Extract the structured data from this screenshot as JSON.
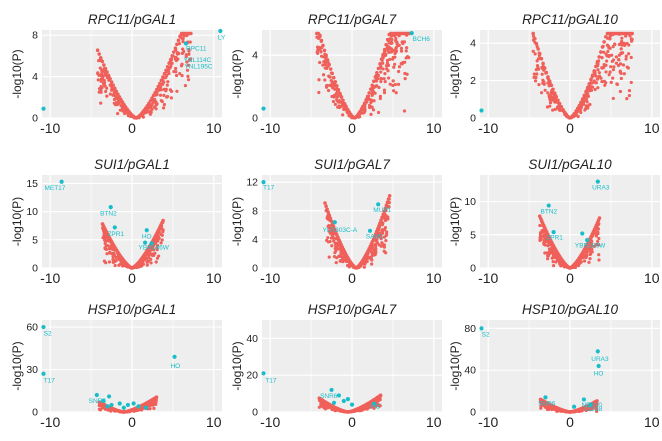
{
  "colors": {
    "background": "#eeeeee",
    "gridline": "#ffffff",
    "significant": "#17bec9",
    "nonsignificant": "#f0605a"
  },
  "chart_data": [
    {
      "type": "scatter",
      "title": "RPC11/pGAL1",
      "ylabel": "-log10(P)",
      "xlim": [
        -11,
        11
      ],
      "ylim": [
        0,
        8.5
      ],
      "xticks": [
        -10,
        0,
        10
      ],
      "yticks": [
        0,
        4,
        8
      ],
      "xtick_labels": [
        "-10",
        "0",
        "10"
      ],
      "ytick_labels": [
        "0",
        "4",
        "8"
      ],
      "grid": true,
      "background": "#eeeeee",
      "volcano": {
        "center": 0.5,
        "k": 0.75,
        "xmin": -4.2,
        "xmax": 7.2
      },
      "points": [
        {
          "x": 6.6,
          "y": 7.2
        },
        {
          "x": 10.8,
          "y": 8.4
        },
        {
          "x": -11,
          "y": 0.9
        }
      ],
      "labels": [
        {
          "text": "RPC11",
          "x": 6.6,
          "y": 6.5
        },
        {
          "text": "YNL114C",
          "x": 6.3,
          "y": 5.4
        },
        {
          "text": "YNL195C",
          "x": 6.4,
          "y": 4.8
        },
        {
          "text": "LY",
          "x": 10.5,
          "y": 7.6
        }
      ]
    },
    {
      "type": "scatter",
      "title": "RPC11/pGAL7",
      "ylabel": "-log10(P)",
      "xlim": [
        -11,
        11
      ],
      "ylim": [
        0,
        5.6
      ],
      "xticks": [
        -10,
        0,
        10
      ],
      "yticks": [
        0,
        4
      ],
      "xtick_labels": [
        "-10",
        "0",
        "10"
      ],
      "ytick_labels": [
        "0",
        "4"
      ],
      "grid": true,
      "background": "#eeeeee",
      "volcano": {
        "center": 0.3,
        "k": 0.7,
        "xmin": -4.3,
        "xmax": 7.0
      },
      "points": [
        {
          "x": 7.3,
          "y": 5.4
        },
        {
          "x": -11,
          "y": 0.6
        }
      ],
      "labels": [
        {
          "text": "BCH6",
          "x": 7.4,
          "y": 4.9
        }
      ]
    },
    {
      "type": "scatter",
      "title": "RPC11/pGAL10",
      "ylabel": "-log10(P)",
      "xlim": [
        -11,
        11
      ],
      "ylim": [
        0,
        4.7
      ],
      "xticks": [
        -10,
        0,
        10
      ],
      "yticks": [
        0,
        2,
        4
      ],
      "xtick_labels": [
        "-10",
        "0",
        "10"
      ],
      "ytick_labels": [
        "0",
        "2",
        "4"
      ],
      "grid": true,
      "background": "#eeeeee",
      "volcano": {
        "center": 0.0,
        "k": 0.55,
        "xmin": -4.5,
        "xmax": 7.6
      },
      "points": [
        {
          "x": -11,
          "y": 0.4
        }
      ],
      "labels": []
    },
    {
      "type": "scatter",
      "title": "SUI1/pGAL1",
      "ylabel": "-log10(P)",
      "xlim": [
        -11,
        11
      ],
      "ylim": [
        0,
        16.5
      ],
      "xticks": [
        -10,
        0,
        10
      ],
      "yticks": [
        0,
        5,
        10,
        15
      ],
      "xtick_labels": [
        "-10",
        "0",
        "10"
      ],
      "ytick_labels": [
        "0",
        "5",
        "10",
        "15"
      ],
      "grid": true,
      "background": "#eeeeee",
      "volcano": {
        "center": 0.0,
        "k": 1.3,
        "xmin": -3.6,
        "xmax": 3.8
      },
      "points": [
        {
          "x": -8.6,
          "y": 15.3
        },
        {
          "x": -2.6,
          "y": 10.8
        },
        {
          "x": -2.1,
          "y": 7.2
        },
        {
          "x": 1.8,
          "y": 6.7
        },
        {
          "x": 1.6,
          "y": 4.5
        },
        {
          "x": 2.4,
          "y": 4.4
        }
      ],
      "labels": [
        {
          "text": "MET17",
          "x": -10.7,
          "y": 13.8
        },
        {
          "text": "BTN2",
          "x": -3.9,
          "y": 9.3
        },
        {
          "text": "ZPR1",
          "x": -3.0,
          "y": 5.7
        },
        {
          "text": "HO",
          "x": 1.2,
          "y": 5.2
        },
        {
          "text": "YBR186W",
          "x": 0.8,
          "y": 3.3
        }
      ]
    },
    {
      "type": "scatter",
      "title": "SUI1/pGAL7",
      "ylabel": "-log10(P)",
      "xlim": [
        -11,
        11
      ],
      "ylim": [
        0,
        13
      ],
      "xticks": [
        -10,
        0,
        10
      ],
      "yticks": [
        0,
        4,
        8,
        12
      ],
      "xtick_labels": [
        "-10",
        "0",
        "10"
      ],
      "ytick_labels": [
        "0",
        "4",
        "8",
        "12"
      ],
      "grid": true,
      "background": "#eeeeee",
      "volcano": {
        "center": 0.5,
        "k": 1.4,
        "xmin": -3.3,
        "xmax": 4.6
      },
      "points": [
        {
          "x": -11,
          "y": 12
        },
        {
          "x": -2.1,
          "y": 6.4
        },
        {
          "x": 3.2,
          "y": 8.9
        },
        {
          "x": 2.2,
          "y": 5.2
        }
      ],
      "labels": [
        {
          "text": "T17",
          "x": -10.9,
          "y": 11.0
        },
        {
          "text": "MUP1",
          "x": 2.6,
          "y": 7.8
        },
        {
          "text": "YLR303C-A",
          "x": -3.6,
          "y": 5.0
        },
        {
          "text": "SAM1",
          "x": 1.7,
          "y": 4.1
        }
      ]
    },
    {
      "type": "scatter",
      "title": "SUI1/pGAL10",
      "ylabel": "-log10(P)",
      "xlim": [
        -11,
        11
      ],
      "ylim": [
        0,
        14
      ],
      "xticks": [
        -10,
        0,
        10
      ],
      "yticks": [
        0,
        5,
        10
      ],
      "xtick_labels": [
        "-10",
        "0",
        "10"
      ],
      "ytick_labels": [
        "0",
        "5",
        "10"
      ],
      "grid": true,
      "background": "#eeeeee",
      "volcano": {
        "center": 0.0,
        "k": 1.25,
        "xmin": -3.7,
        "xmax": 3.6
      },
      "points": [
        {
          "x": 3.4,
          "y": 13.0
        },
        {
          "x": -2.6,
          "y": 9.4
        },
        {
          "x": -2.0,
          "y": 5.4
        },
        {
          "x": 1.5,
          "y": 5.2
        },
        {
          "x": 2.1,
          "y": 4.2
        }
      ],
      "labels": [
        {
          "text": "URA3",
          "x": 2.7,
          "y": 11.8
        },
        {
          "text": "BTN2",
          "x": -3.6,
          "y": 8.2
        },
        {
          "text": "ZPR1",
          "x": -2.9,
          "y": 4.3
        },
        {
          "text": "YBR186W",
          "x": 0.6,
          "y": 3.1
        }
      ]
    },
    {
      "type": "scatter",
      "title": "HSP10/pGAL1",
      "ylabel": "-log10(P)",
      "xlim": [
        -11,
        11
      ],
      "ylim": [
        0,
        65
      ],
      "xticks": [
        -10,
        0,
        10
      ],
      "yticks": [
        0,
        30,
        60
      ],
      "xtick_labels": [
        "-10",
        "0",
        "10"
      ],
      "ytick_labels": [
        "0",
        "30",
        "60"
      ],
      "grid": true,
      "background": "#eeeeee",
      "volcano": {
        "center": -1.0,
        "k": 1.5,
        "xmin": -4.0,
        "xmax": 3.0
      },
      "points": [
        {
          "x": -11,
          "y": 60
        },
        {
          "x": -11,
          "y": 27
        },
        {
          "x": 5.2,
          "y": 39
        },
        {
          "x": -4.3,
          "y": 12
        },
        {
          "x": -2.8,
          "y": 11
        },
        {
          "x": -3.5,
          "y": 8
        },
        {
          "x": -1.5,
          "y": 6
        },
        {
          "x": -0.5,
          "y": 5
        },
        {
          "x": 0.8,
          "y": 4
        },
        {
          "x": -2.5,
          "y": 5
        },
        {
          "x": -3.0,
          "y": 4
        },
        {
          "x": -1.0,
          "y": 3
        },
        {
          "x": 0.2,
          "y": 6
        },
        {
          "x": 1.7,
          "y": 3
        }
      ],
      "labels": [
        {
          "text": "S2",
          "x": -10.8,
          "y": 54
        },
        {
          "text": "T17",
          "x": -10.8,
          "y": 21
        },
        {
          "text": "HO",
          "x": 4.7,
          "y": 31
        },
        {
          "text": "SNR6",
          "x": -5.3,
          "y": 6.5
        }
      ]
    },
    {
      "type": "scatter",
      "title": "HSP10/pGAL7",
      "ylabel": "-log10(P)",
      "xlim": [
        -11,
        11
      ],
      "ylim": [
        0,
        50
      ],
      "xticks": [
        -10,
        0,
        10
      ],
      "yticks": [
        0,
        20,
        40
      ],
      "xtick_labels": [
        "-10",
        "0",
        "10"
      ],
      "ytick_labels": [
        "0",
        "20",
        "40"
      ],
      "grid": true,
      "background": "#eeeeee",
      "volcano": {
        "center": -0.5,
        "k": 1.3,
        "xmin": -4.0,
        "xmax": 3.5
      },
      "points": [
        {
          "x": -11,
          "y": 21
        },
        {
          "x": -2.5,
          "y": 12
        },
        {
          "x": -1.6,
          "y": 9
        },
        {
          "x": -1.0,
          "y": 6
        },
        {
          "x": -2.2,
          "y": 5
        },
        {
          "x": 0.0,
          "y": 4
        },
        {
          "x": 2.7,
          "y": 4.5
        },
        {
          "x": -0.5,
          "y": 7
        }
      ],
      "labels": [
        {
          "text": "T17",
          "x": -10.6,
          "y": 16
        },
        {
          "text": "SNR6",
          "x": -3.9,
          "y": 7.5
        },
        {
          "text": "HO",
          "x": 2.3,
          "y": 1.8
        }
      ]
    },
    {
      "type": "scatter",
      "title": "HSP10/pGAL10",
      "ylabel": "-log10(P)",
      "xlim": [
        -11,
        11
      ],
      "ylim": [
        0,
        88
      ],
      "xticks": [
        -10,
        0,
        10
      ],
      "yticks": [
        0,
        40,
        80
      ],
      "xtick_labels": [
        "-10",
        "0",
        "10"
      ],
      "ytick_labels": [
        "0",
        "40",
        "80"
      ],
      "grid": true,
      "background": "#eeeeee",
      "volcano": {
        "center": 0.0,
        "k": 2.0,
        "xmin": -3.6,
        "xmax": 3.3
      },
      "points": [
        {
          "x": -11,
          "y": 80
        },
        {
          "x": 3.4,
          "y": 58
        },
        {
          "x": 3.5,
          "y": 44
        },
        {
          "x": -3.0,
          "y": 14
        },
        {
          "x": 1.7,
          "y": 12
        },
        {
          "x": 0.5,
          "y": 5
        },
        {
          "x": 2.5,
          "y": 7
        }
      ],
      "labels": [
        {
          "text": "S2",
          "x": -10.8,
          "y": 72
        },
        {
          "text": "URA3",
          "x": 2.6,
          "y": 49
        },
        {
          "text": "HO",
          "x": 2.9,
          "y": 35
        },
        {
          "text": "SNR6",
          "x": -3.9,
          "y": 6
        },
        {
          "text": "NEP10",
          "x": 1.4,
          "y": 5
        },
        {
          "text": "COS8",
          "x": 1.8,
          "y": -1
        }
      ]
    }
  ]
}
